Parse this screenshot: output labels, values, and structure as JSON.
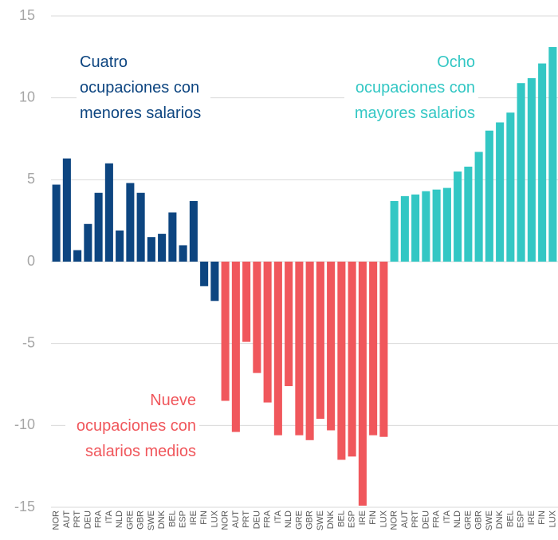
{
  "chart_data": {
    "type": "bar",
    "categories": [
      "NOR",
      "AUT",
      "PRT",
      "DEU",
      "FRA",
      "ITA",
      "NLD",
      "GRE",
      "GBR",
      "SWE",
      "DNK",
      "BEL",
      "ESP",
      "IRE",
      "FIN",
      "LUX",
      "NOR",
      "AUT",
      "PRT",
      "DEU",
      "FRA",
      "ITA",
      "NLD",
      "GRE",
      "GBR",
      "SWE",
      "DNK",
      "BEL",
      "ESP",
      "IRE",
      "FIN",
      "LUX",
      "NOR",
      "AUT",
      "PRT",
      "DEU",
      "FRA",
      "ITA",
      "NLD",
      "GRE",
      "GBR",
      "SWE",
      "DNK",
      "BEL",
      "ESP",
      "IRE",
      "FIN",
      "LUX"
    ],
    "series": [
      {
        "name": "Cuatro ocupaciones con menores salarios",
        "color": "#0d4580",
        "values": [
          4.7,
          6.3,
          0.7,
          2.3,
          4.2,
          6.0,
          1.9,
          4.8,
          4.2,
          1.5,
          1.7,
          3.0,
          1.0,
          3.7,
          -1.5,
          -2.4,
          null,
          null,
          null,
          null,
          null,
          null,
          null,
          null,
          null,
          null,
          null,
          null,
          null,
          null,
          null,
          null,
          null,
          null,
          null,
          null,
          null,
          null,
          null,
          null,
          null,
          null,
          null,
          null,
          null,
          null,
          null,
          null
        ]
      },
      {
        "name": "Nueve ocupaciones con salarios medios",
        "color": "#f0575c",
        "values": [
          null,
          null,
          null,
          null,
          null,
          null,
          null,
          null,
          null,
          null,
          null,
          null,
          null,
          null,
          null,
          null,
          -8.5,
          -10.4,
          -4.9,
          -6.8,
          -8.6,
          -10.6,
          -7.6,
          -10.6,
          -10.9,
          -9.6,
          -10.3,
          -12.1,
          -11.9,
          -14.9,
          -10.6,
          -10.7,
          null,
          null,
          null,
          null,
          null,
          null,
          null,
          null,
          null,
          null,
          null,
          null,
          null,
          null,
          null,
          null
        ]
      },
      {
        "name": "Ocho ocupaciones con mayores salarios",
        "color": "#33c7c4",
        "values": [
          null,
          null,
          null,
          null,
          null,
          null,
          null,
          null,
          null,
          null,
          null,
          null,
          null,
          null,
          null,
          null,
          null,
          null,
          null,
          null,
          null,
          null,
          null,
          null,
          null,
          null,
          null,
          null,
          null,
          null,
          null,
          null,
          3.7,
          4.0,
          4.1,
          4.3,
          4.4,
          4.5,
          5.5,
          5.8,
          6.7,
          8.0,
          8.5,
          9.1,
          10.9,
          11.2,
          12.1,
          13.1
        ]
      }
    ],
    "ylim": [
      -15,
      15
    ],
    "yticks": [
      15,
      10,
      5,
      0,
      -5,
      -10,
      -15
    ],
    "grid": true
  }
}
